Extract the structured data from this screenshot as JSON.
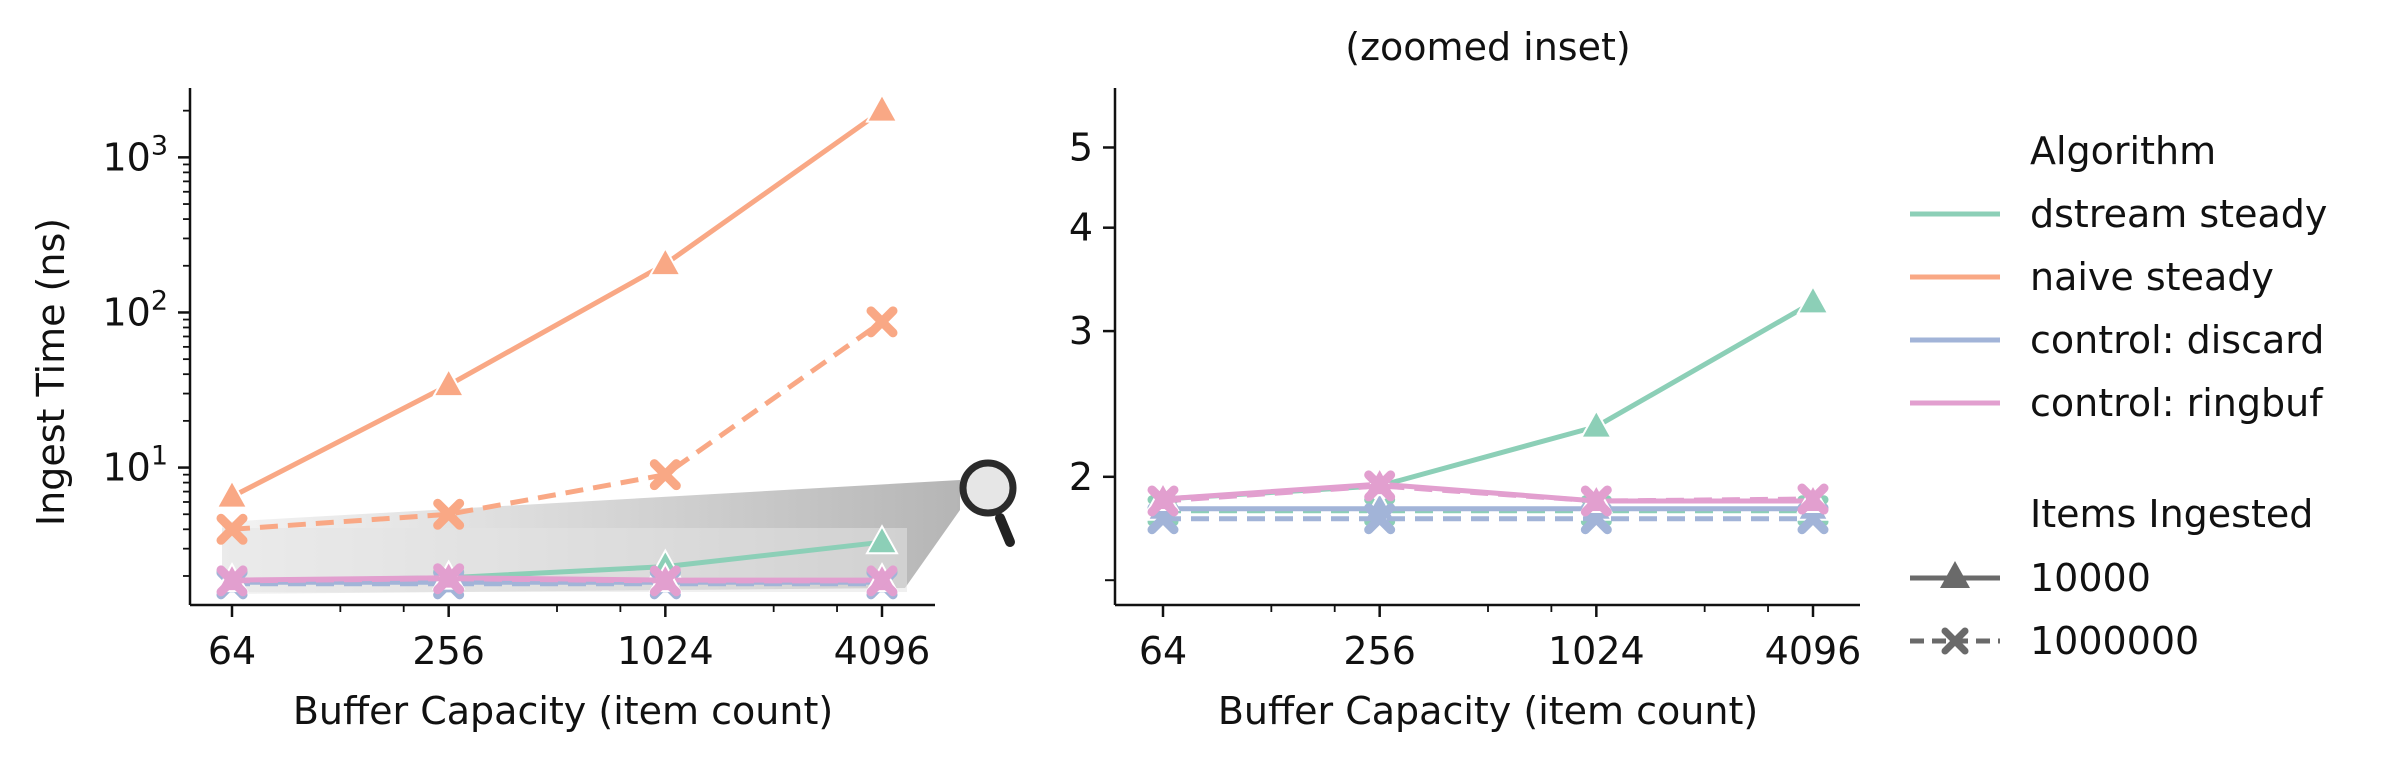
{
  "colors": {
    "dstream_steady": "#8ccfb7",
    "naive_steady": "#f9a885",
    "control_discard": "#a2b4d8",
    "control_ringbuf": "#e29fcf",
    "legend_style": "#6a6a6a"
  },
  "chart_data": [
    {
      "type": "line",
      "title": "",
      "xlabel": "Buffer Capacity (item count)",
      "ylabel": "Ingest Time (ns)",
      "xscale": "log2",
      "yscale": "log10",
      "x": [
        64,
        256,
        1024,
        4096
      ],
      "xticks": [
        "64",
        "256",
        "1024",
        "4096"
      ],
      "yticks": [
        "10^1",
        "10^2",
        "10^3"
      ],
      "ylim": [
        1.3,
        2800
      ],
      "inset_icon": "magnifier-icon",
      "series": [
        {
          "name": "dstream steady",
          "items": "10000",
          "values": [
            1.85,
            1.95,
            2.3,
            3.3
          ]
        },
        {
          "name": "dstream steady",
          "items": "1000000",
          "values": [
            1.8,
            1.8,
            1.8,
            1.8
          ]
        },
        {
          "name": "naive steady",
          "items": "10000",
          "values": [
            6.5,
            34,
            205,
            2000
          ]
        },
        {
          "name": "naive steady",
          "items": "1000000",
          "values": [
            4.0,
            5.0,
            9.0,
            87
          ]
        },
        {
          "name": "control: discard",
          "items": "10000",
          "values": [
            1.82,
            1.82,
            1.82,
            1.82
          ]
        },
        {
          "name": "control: discard",
          "items": "1000000",
          "values": [
            1.78,
            1.78,
            1.78,
            1.78
          ]
        },
        {
          "name": "control: ringbuf",
          "items": "10000",
          "values": [
            1.88,
            1.95,
            1.88,
            1.88
          ]
        },
        {
          "name": "control: ringbuf",
          "items": "1000000",
          "values": [
            1.86,
            1.92,
            1.86,
            1.86
          ]
        }
      ]
    },
    {
      "type": "line",
      "title": "(zoomed inset)",
      "xlabel": "Buffer Capacity (item count)",
      "ylabel": "",
      "xscale": "log2",
      "yscale": "log",
      "x": [
        64,
        256,
        1024,
        4096
      ],
      "xticks": [
        "64",
        "256",
        "1024",
        "4096"
      ],
      "yticks": [
        "2",
        "3",
        "4",
        "5"
      ],
      "ylim": [
        1.4,
        5.9
      ],
      "series": [
        {
          "name": "dstream steady",
          "items": "10000",
          "values": [
            1.88,
            1.95,
            2.3,
            3.25
          ]
        },
        {
          "name": "dstream steady",
          "items": "1000000",
          "values": [
            1.82,
            1.82,
            1.82,
            1.82
          ]
        },
        {
          "name": "control: discard",
          "items": "10000",
          "values": [
            1.83,
            1.83,
            1.83,
            1.83
          ]
        },
        {
          "name": "control: discard",
          "items": "1000000",
          "values": [
            1.78,
            1.78,
            1.78,
            1.78
          ]
        },
        {
          "name": "control: ringbuf",
          "items": "10000",
          "values": [
            1.88,
            1.96,
            1.87,
            1.87
          ]
        },
        {
          "name": "control: ringbuf",
          "items": "1000000",
          "values": [
            1.87,
            1.95,
            1.87,
            1.88
          ]
        }
      ]
    }
  ],
  "legend": {
    "algorithm_title": "Algorithm",
    "algorithms": [
      "dstream steady",
      "naive steady",
      "control: discard",
      "control: ringbuf"
    ],
    "items_title": "Items Ingested",
    "items": [
      "10000",
      "1000000"
    ]
  }
}
